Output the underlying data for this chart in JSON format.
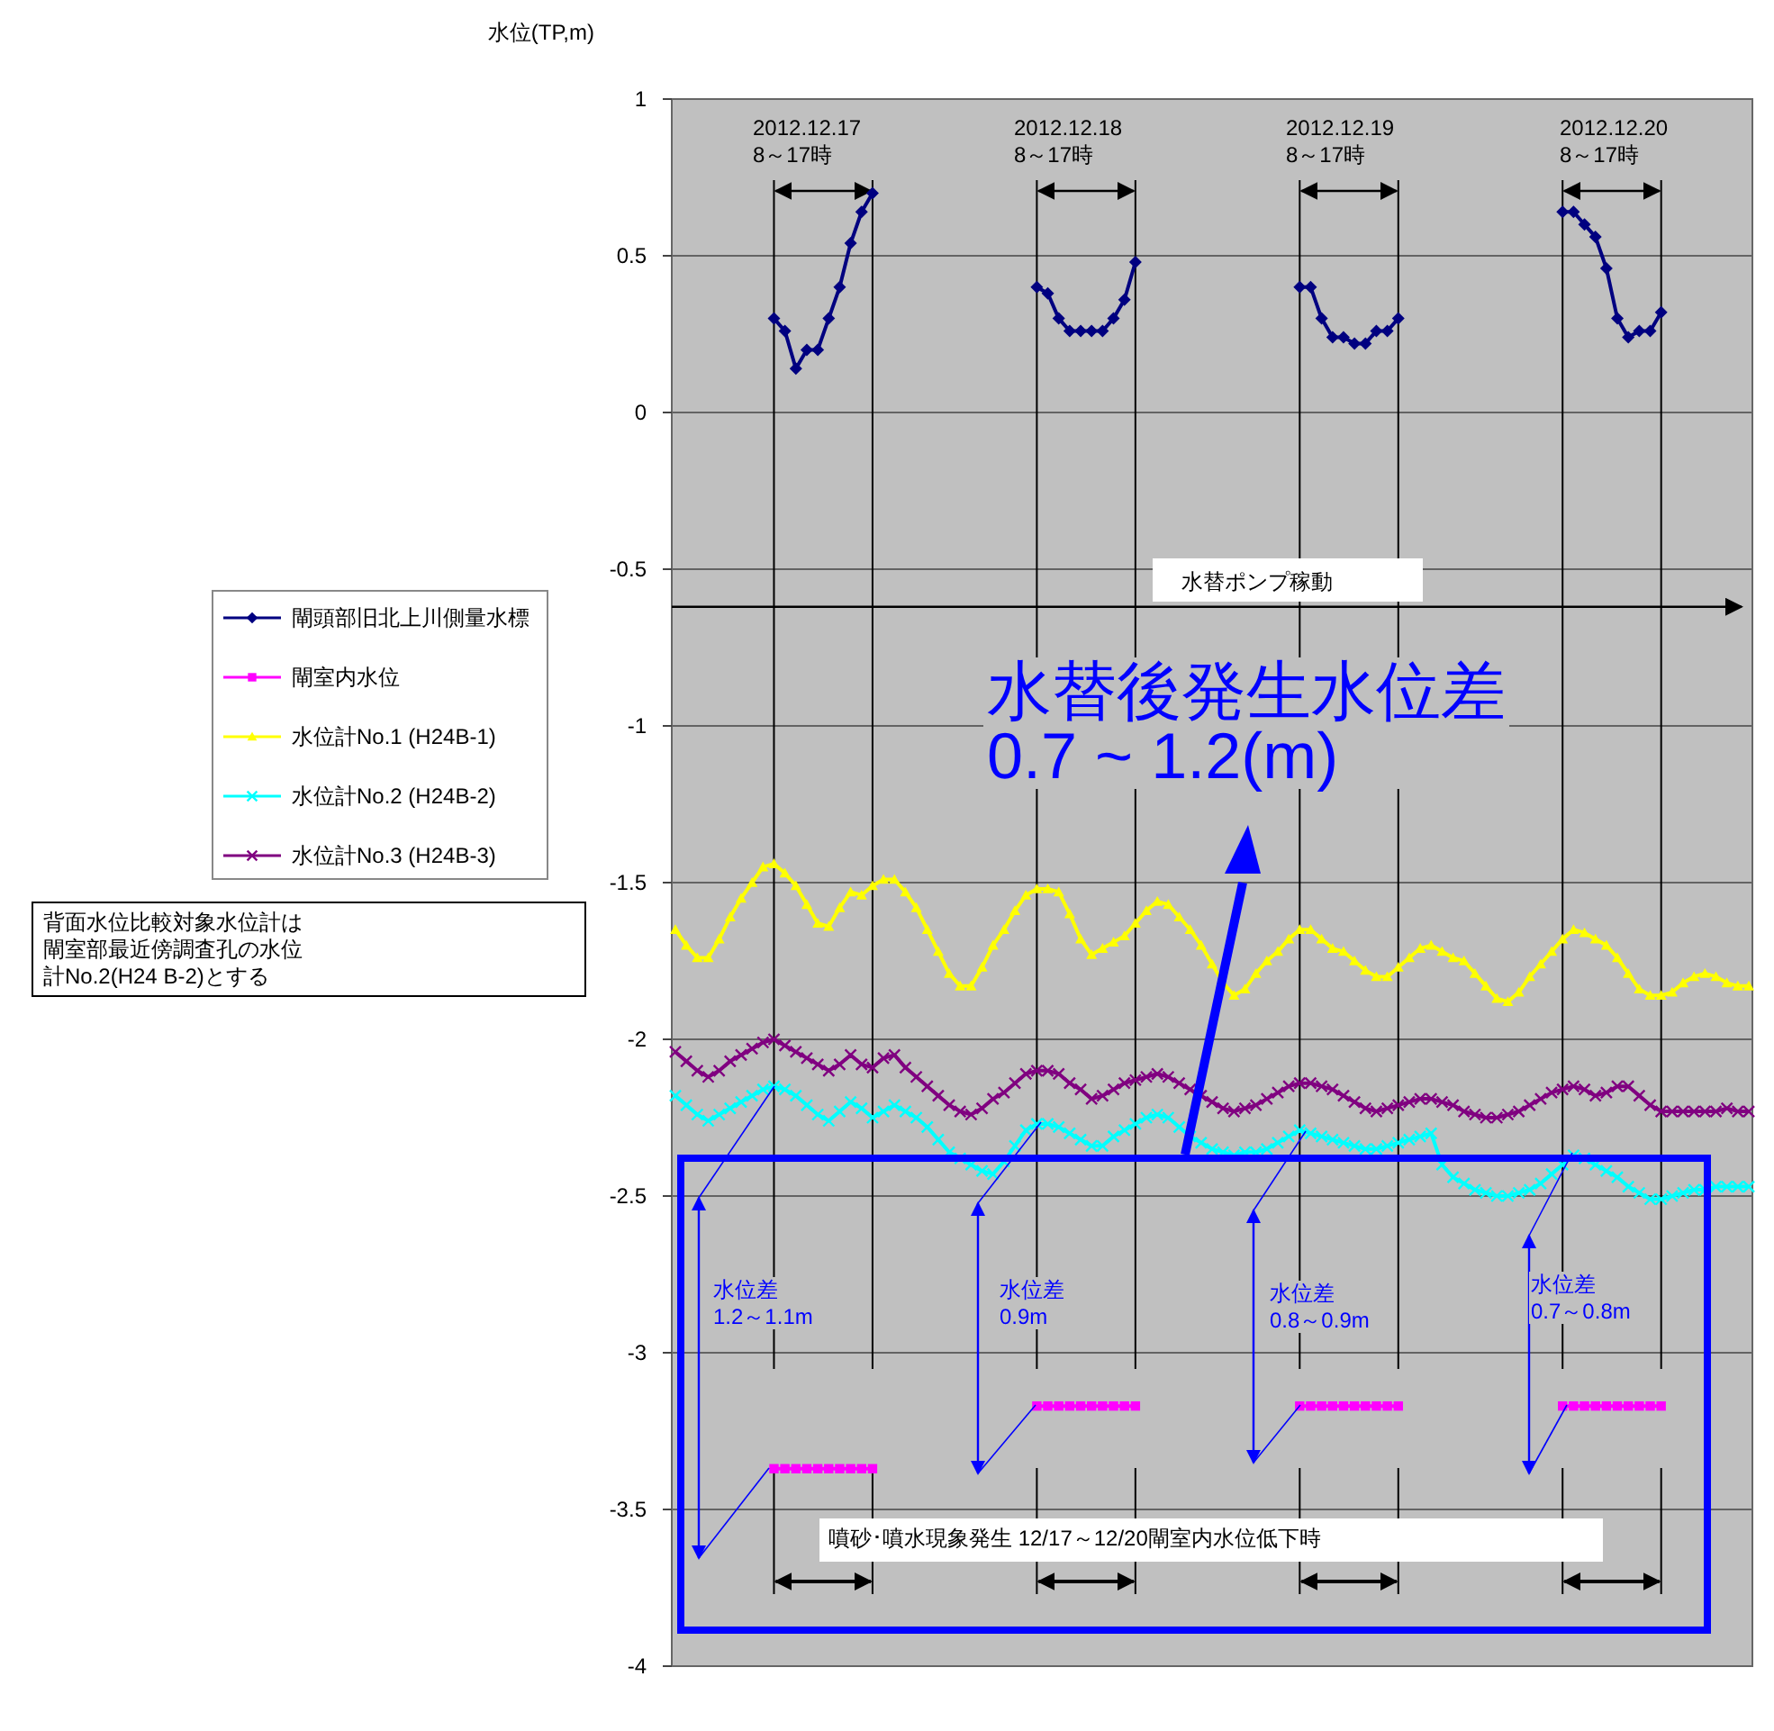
{
  "chart_data": {
    "type": "line",
    "ylabel": "水位(TP,m)",
    "ylim": [
      -4,
      1
    ],
    "yticks": [
      -4,
      -3.5,
      -3,
      -2.5,
      -2,
      -1.5,
      -1,
      -0.5,
      0,
      0.5,
      1
    ],
    "grid": true,
    "legend": "left",
    "tick_labels": "y",
    "categories": [
      null,
      null,
      null,
      null,
      null,
      null,
      null,
      null,
      null,
      null,
      null,
      null,
      null,
      null,
      null,
      null,
      null,
      null,
      null,
      null,
      null,
      null,
      null,
      null,
      null,
      null,
      null,
      null,
      null,
      null,
      null,
      null,
      null,
      null,
      null,
      null,
      null,
      null,
      null,
      null,
      null,
      null,
      null,
      null,
      null,
      null,
      null,
      null,
      null,
      null,
      null,
      null,
      null,
      null,
      null,
      null,
      null,
      null,
      null,
      null,
      null,
      null,
      null,
      null,
      null,
      null,
      null,
      null,
      null,
      null,
      null,
      null,
      null,
      null,
      null,
      null,
      null,
      null,
      null,
      null,
      null,
      null,
      null,
      null,
      null,
      null,
      null,
      null,
      null,
      null,
      null,
      null,
      null,
      null,
      null,
      null,
      null,
      null,
      null
    ],
    "series": [
      {
        "name": "閘頭部旧北上川側量水標",
        "color": "#000080",
        "marker": "diamond",
        "values": [
          null,
          null,
          null,
          null,
          null,
          null,
          null,
          null,
          null,
          0.3,
          0.26,
          0.14,
          0.2,
          0.2,
          0.3,
          0.4,
          0.54,
          0.64,
          0.7,
          null,
          null,
          null,
          null,
          null,
          null,
          null,
          null,
          null,
          null,
          null,
          null,
          null,
          null,
          0.4,
          0.38,
          0.3,
          0.26,
          0.26,
          0.26,
          0.26,
          0.3,
          0.36,
          0.48,
          null,
          null,
          null,
          null,
          null,
          null,
          null,
          null,
          null,
          null,
          null,
          null,
          null,
          null,
          0.4,
          0.4,
          0.3,
          0.24,
          0.24,
          0.22,
          0.22,
          0.26,
          0.26,
          0.3,
          null,
          null,
          null,
          null,
          null,
          null,
          null,
          null,
          null,
          null,
          null,
          null,
          null,
          null,
          0.64,
          0.64,
          0.6,
          0.56,
          0.46,
          0.3,
          0.24,
          0.26,
          0.26,
          0.32,
          null,
          null,
          null,
          null,
          null,
          null,
          null,
          null
        ]
      },
      {
        "name": "閘室内水位",
        "color": "#ff00ff",
        "marker": "square",
        "values": [
          null,
          null,
          null,
          null,
          null,
          null,
          null,
          null,
          null,
          -3.37,
          -3.37,
          -3.37,
          -3.37,
          -3.37,
          -3.37,
          -3.37,
          -3.37,
          -3.37,
          -3.37,
          null,
          null,
          null,
          null,
          null,
          null,
          null,
          null,
          null,
          null,
          null,
          null,
          null,
          null,
          -3.17,
          -3.17,
          -3.17,
          -3.17,
          -3.17,
          -3.17,
          -3.17,
          -3.17,
          -3.17,
          -3.17,
          null,
          null,
          null,
          null,
          null,
          null,
          null,
          null,
          null,
          null,
          null,
          null,
          null,
          null,
          -3.17,
          -3.17,
          -3.17,
          -3.17,
          -3.17,
          -3.17,
          -3.17,
          -3.17,
          -3.17,
          -3.17,
          null,
          null,
          null,
          null,
          null,
          null,
          null,
          null,
          null,
          null,
          null,
          null,
          null,
          null,
          -3.17,
          -3.17,
          -3.17,
          -3.17,
          -3.17,
          -3.17,
          -3.17,
          -3.17,
          -3.17,
          -3.17,
          null,
          null,
          null,
          null,
          null,
          null,
          null,
          null
        ]
      },
      {
        "name": "水位計No.1 (H24B-1)",
        "color": "#ffff00",
        "marker": "triangle",
        "values": [
          -1.65,
          -1.7,
          -1.74,
          -1.74,
          -1.68,
          -1.61,
          -1.55,
          -1.5,
          -1.45,
          -1.44,
          -1.47,
          -1.51,
          -1.57,
          -1.63,
          -1.64,
          -1.58,
          -1.53,
          -1.54,
          -1.51,
          -1.49,
          -1.49,
          -1.53,
          -1.58,
          -1.65,
          -1.72,
          -1.79,
          -1.83,
          -1.83,
          -1.77,
          -1.7,
          -1.65,
          -1.59,
          -1.54,
          -1.52,
          -1.52,
          -1.53,
          -1.6,
          -1.68,
          -1.73,
          -1.71,
          -1.69,
          -1.67,
          -1.63,
          -1.59,
          -1.56,
          -1.57,
          -1.61,
          -1.65,
          -1.7,
          -1.76,
          -1.82,
          -1.86,
          -1.84,
          -1.79,
          -1.75,
          -1.72,
          -1.68,
          -1.65,
          -1.65,
          -1.68,
          -1.71,
          -1.72,
          -1.75,
          -1.78,
          -1.8,
          -1.8,
          -1.77,
          -1.74,
          -1.71,
          -1.7,
          -1.72,
          -1.74,
          -1.75,
          -1.79,
          -1.83,
          -1.87,
          -1.88,
          -1.85,
          -1.8,
          -1.76,
          -1.72,
          -1.68,
          -1.65,
          -1.66,
          -1.68,
          -1.7,
          -1.74,
          -1.79,
          -1.84,
          -1.86,
          -1.86,
          -1.85,
          -1.82,
          -1.8,
          -1.79,
          -1.8,
          -1.82,
          -1.83,
          -1.83
        ]
      },
      {
        "name": "水位計No.2 (H24B-2)",
        "color": "#00ffff",
        "marker": "cross",
        "values": [
          -2.18,
          -2.21,
          -2.24,
          -2.26,
          -2.24,
          -2.22,
          -2.2,
          -2.18,
          -2.16,
          -2.15,
          -2.16,
          -2.18,
          -2.21,
          -2.24,
          -2.26,
          -2.23,
          -2.2,
          -2.22,
          -2.25,
          -2.23,
          -2.21,
          -2.23,
          -2.25,
          -2.28,
          -2.32,
          -2.36,
          -2.38,
          -2.4,
          -2.42,
          -2.43,
          -2.39,
          -2.34,
          -2.29,
          -2.27,
          -2.27,
          -2.28,
          -2.3,
          -2.32,
          -2.34,
          -2.34,
          -2.31,
          -2.29,
          -2.27,
          -2.25,
          -2.24,
          -2.25,
          -2.28,
          -2.31,
          -2.33,
          -2.35,
          -2.36,
          -2.37,
          -2.36,
          -2.36,
          -2.35,
          -2.33,
          -2.31,
          -2.29,
          -2.3,
          -2.31,
          -2.32,
          -2.33,
          -2.34,
          -2.35,
          -2.35,
          -2.34,
          -2.33,
          -2.32,
          -2.31,
          -2.3,
          -2.4,
          -2.44,
          -2.46,
          -2.48,
          -2.49,
          -2.5,
          -2.5,
          -2.49,
          -2.48,
          -2.46,
          -2.43,
          -2.4,
          -2.37,
          -2.38,
          -2.4,
          -2.42,
          -2.44,
          -2.47,
          -2.49,
          -2.51,
          -2.51,
          -2.5,
          -2.49,
          -2.48,
          -2.48,
          -2.47,
          -2.47,
          -2.47,
          -2.47
        ]
      },
      {
        "name": "水位計No.3 (H24B-3)",
        "color": "#800080",
        "marker": "cross",
        "values": [
          -2.04,
          -2.07,
          -2.1,
          -2.12,
          -2.1,
          -2.07,
          -2.05,
          -2.03,
          -2.01,
          -2.0,
          -2.02,
          -2.04,
          -2.06,
          -2.08,
          -2.1,
          -2.08,
          -2.05,
          -2.08,
          -2.09,
          -2.06,
          -2.05,
          -2.09,
          -2.12,
          -2.15,
          -2.18,
          -2.21,
          -2.23,
          -2.24,
          -2.22,
          -2.19,
          -2.17,
          -2.14,
          -2.11,
          -2.1,
          -2.1,
          -2.11,
          -2.14,
          -2.16,
          -2.19,
          -2.18,
          -2.16,
          -2.14,
          -2.13,
          -2.12,
          -2.11,
          -2.12,
          -2.14,
          -2.16,
          -2.18,
          -2.2,
          -2.22,
          -2.23,
          -2.22,
          -2.21,
          -2.19,
          -2.17,
          -2.15,
          -2.14,
          -2.14,
          -2.15,
          -2.16,
          -2.18,
          -2.2,
          -2.22,
          -2.23,
          -2.22,
          -2.21,
          -2.2,
          -2.19,
          -2.19,
          -2.2,
          -2.21,
          -2.23,
          -2.24,
          -2.25,
          -2.25,
          -2.24,
          -2.23,
          -2.21,
          -2.19,
          -2.17,
          -2.16,
          -2.15,
          -2.16,
          -2.18,
          -2.17,
          -2.15,
          -2.15,
          -2.18,
          -2.21,
          -2.23,
          -2.23,
          -2.23,
          -2.23,
          -2.23,
          -2.23,
          -2.22,
          -2.23,
          -2.23
        ]
      }
    ],
    "ref_lines": [
      {
        "axis": "y",
        "value": -0.62
      }
    ],
    "annotations": [
      "2012.12.17\n8～17時",
      "2012.12.18\n8～17時",
      "2012.12.19\n8～17時",
      "2012.12.20\n8～17時",
      "水替ポンプ稼動",
      "水位差\n1.2～1.1m",
      "水位差\n0.9m",
      "水位差\n0.8～0.9m",
      "水位差\n0.7～0.8m",
      "噴砂･噴水現象発生 12/17～12/20閘室内水位低下時",
      "背面水位比較対象水位計は閘室部最近傍調査孔の水位計No.2(H24 B-2)とする",
      "水替後発生水位差\n0.7 ~ 1.2(m)"
    ]
  }
}
